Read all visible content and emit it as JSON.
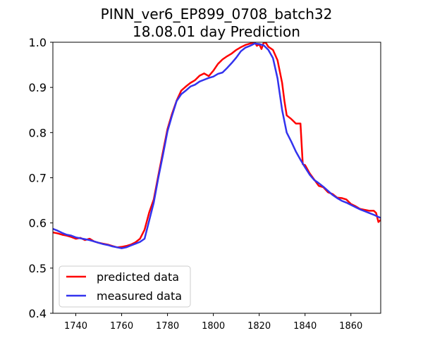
{
  "chart_data": {
    "type": "line",
    "title": "PINN_ver6_EP899_0708_batch32",
    "subtitle": "18.08.01 day Prediction",
    "xlabel": "",
    "ylabel": "",
    "xlim": [
      1730,
      1873
    ],
    "ylim": [
      0.4,
      1.0
    ],
    "xticks": [
      1740,
      1760,
      1780,
      1800,
      1820,
      1840,
      1860
    ],
    "yticks": [
      0.4,
      0.5,
      0.6,
      0.7,
      0.8,
      0.9,
      1.0
    ],
    "grid": false,
    "legend_position": "lower-left",
    "series": [
      {
        "name": "predicted data",
        "color": "#ff0000",
        "x": [
          1730,
          1732,
          1734,
          1736,
          1738,
          1740,
          1742,
          1744,
          1746,
          1748,
          1750,
          1752,
          1754,
          1756,
          1758,
          1760,
          1762,
          1764,
          1766,
          1768,
          1770,
          1772,
          1774,
          1776,
          1778,
          1780,
          1782,
          1784,
          1786,
          1788,
          1790,
          1792,
          1794,
          1796,
          1798,
          1800,
          1802,
          1804,
          1806,
          1808,
          1810,
          1812,
          1814,
          1816,
          1818,
          1819,
          1820,
          1821,
          1822,
          1823,
          1824,
          1826,
          1828,
          1830,
          1831,
          1832,
          1834,
          1835,
          1836,
          1837,
          1838,
          1839,
          1840,
          1842,
          1844,
          1846,
          1848,
          1850,
          1852,
          1854,
          1856,
          1858,
          1860,
          1862,
          1864,
          1866,
          1868,
          1870,
          1871,
          1872,
          1873
        ],
        "y": [
          0.579,
          0.577,
          0.574,
          0.572,
          0.569,
          0.565,
          0.567,
          0.562,
          0.565,
          0.559,
          0.556,
          0.554,
          0.552,
          0.549,
          0.546,
          0.547,
          0.549,
          0.552,
          0.557,
          0.565,
          0.585,
          0.623,
          0.652,
          0.705,
          0.757,
          0.808,
          0.842,
          0.871,
          0.893,
          0.902,
          0.91,
          0.916,
          0.926,
          0.931,
          0.925,
          0.937,
          0.952,
          0.962,
          0.969,
          0.975,
          0.983,
          0.989,
          0.994,
          0.997,
          1.0,
          0.992,
          0.996,
          0.985,
          1.0,
          0.998,
          0.99,
          0.983,
          0.96,
          0.91,
          0.87,
          0.838,
          0.83,
          0.825,
          0.82,
          0.82,
          0.82,
          0.73,
          0.728,
          0.71,
          0.696,
          0.682,
          0.679,
          0.668,
          0.664,
          0.656,
          0.655,
          0.652,
          0.642,
          0.637,
          0.631,
          0.629,
          0.627,
          0.627,
          0.622,
          0.602,
          0.607
        ]
      },
      {
        "name": "measured data",
        "color": "#3333ee",
        "x": [
          1730,
          1732,
          1734,
          1736,
          1738,
          1740,
          1742,
          1744,
          1746,
          1748,
          1750,
          1752,
          1754,
          1756,
          1758,
          1760,
          1762,
          1764,
          1766,
          1768,
          1770,
          1772,
          1774,
          1776,
          1778,
          1780,
          1782,
          1784,
          1786,
          1788,
          1790,
          1792,
          1794,
          1796,
          1798,
          1800,
          1802,
          1804,
          1806,
          1808,
          1810,
          1812,
          1814,
          1816,
          1818,
          1820,
          1822,
          1824,
          1826,
          1828,
          1830,
          1832,
          1834,
          1836,
          1838,
          1840,
          1842,
          1844,
          1846,
          1848,
          1850,
          1852,
          1854,
          1856,
          1858,
          1860,
          1862,
          1864,
          1866,
          1868,
          1870,
          1873
        ],
        "y": [
          0.587,
          0.583,
          0.578,
          0.574,
          0.572,
          0.568,
          0.566,
          0.564,
          0.562,
          0.559,
          0.556,
          0.553,
          0.551,
          0.548,
          0.546,
          0.544,
          0.546,
          0.55,
          0.554,
          0.558,
          0.565,
          0.605,
          0.645,
          0.7,
          0.75,
          0.803,
          0.838,
          0.87,
          0.885,
          0.893,
          0.902,
          0.906,
          0.913,
          0.917,
          0.921,
          0.924,
          0.93,
          0.933,
          0.943,
          0.954,
          0.966,
          0.98,
          0.988,
          0.992,
          0.997,
          0.996,
          0.993,
          0.983,
          0.965,
          0.92,
          0.85,
          0.8,
          0.78,
          0.758,
          0.74,
          0.723,
          0.707,
          0.695,
          0.688,
          0.68,
          0.671,
          0.662,
          0.655,
          0.649,
          0.645,
          0.64,
          0.635,
          0.63,
          0.626,
          0.622,
          0.618,
          0.611
        ]
      }
    ]
  }
}
